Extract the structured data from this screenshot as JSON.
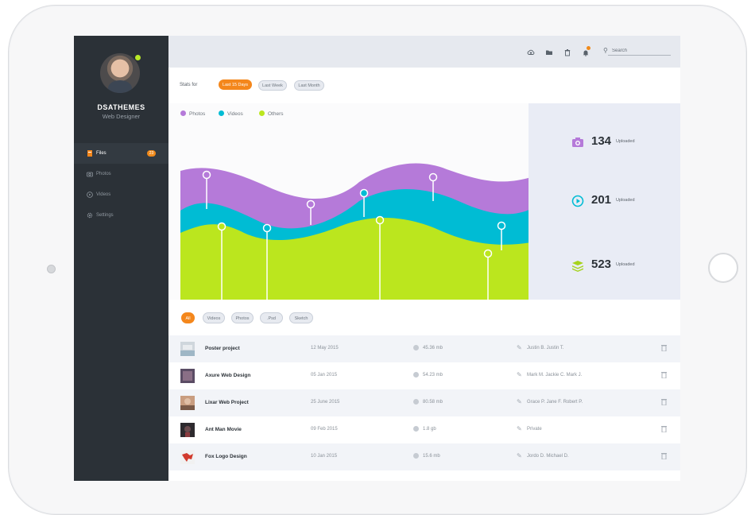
{
  "profile": {
    "name": "DSATHEMES",
    "role": "Web Designer"
  },
  "sidebar": {
    "items": [
      {
        "label": "Files",
        "icon": "file-icon",
        "badge": "23",
        "active": true
      },
      {
        "label": "Photos",
        "icon": "camera-icon"
      },
      {
        "label": "Videos",
        "icon": "play-icon"
      },
      {
        "label": "Settings",
        "icon": "gear-icon"
      }
    ]
  },
  "topbar": {
    "icons": [
      "cloud-upload-icon",
      "folder-icon",
      "trash-icon",
      "bell-icon"
    ],
    "search_placeholder": "Search"
  },
  "stats": {
    "label": "Stats for",
    "ranges": [
      "Last 15 Days",
      "Last Week",
      "Last Month"
    ],
    "active_range": "Last 15 Days"
  },
  "chart_data": {
    "type": "area",
    "series": [
      {
        "name": "Photos",
        "color": "#b57ad9"
      },
      {
        "name": "Videos",
        "color": "#00bcd4"
      },
      {
        "name": "Others",
        "color": "#bbe61e"
      }
    ],
    "legend_position": "top-left",
    "grid": false
  },
  "summary": [
    {
      "value": "134",
      "label": "Uploaded",
      "icon": "camera-icon",
      "color": "#b57ad9"
    },
    {
      "value": "201",
      "label": "Uploaded",
      "icon": "play-icon",
      "color": "#00bcd4"
    },
    {
      "value": "523",
      "label": "Uploaded",
      "icon": "layers-icon",
      "color": "#a6d31d"
    }
  ],
  "filters": {
    "items": [
      "All",
      "Videos",
      "Photos",
      ".Psd",
      "Sketch"
    ],
    "active": "All"
  },
  "files": [
    {
      "name": "Poster project",
      "date": "12 May 2015",
      "size": "45.36 mb",
      "users": "Justin B. Justin T."
    },
    {
      "name": "Axure Web Design",
      "date": "05 Jan 2015",
      "size": "54.23 mb",
      "users": "Mark M. Jackie C. Mark J."
    },
    {
      "name": "Lixar Web Project",
      "date": "25 June 2015",
      "size": "80.58 mb",
      "users": "Grace P. Jane F. Robert P."
    },
    {
      "name": "Ant Man Movie",
      "date": "09 Feb 2015",
      "size": "1.8 gb",
      "users": "Private"
    },
    {
      "name": "Fox Logo Design",
      "date": "10 Jan 2015",
      "size": "15.6 mb",
      "users": "Jordo D. Michael D."
    }
  ]
}
